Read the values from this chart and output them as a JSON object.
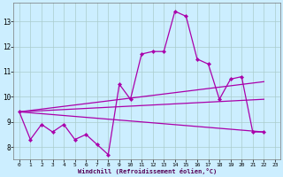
{
  "xlabel": "Windchill (Refroidissement éolien,°C)",
  "background_color": "#cceeff",
  "grid_color": "#aacccc",
  "line_color": "#aa00aa",
  "xlim": [
    -0.5,
    23.5
  ],
  "ylim": [
    7.5,
    13.75
  ],
  "yticks": [
    8,
    9,
    10,
    11,
    12,
    13
  ],
  "xticks": [
    0,
    1,
    2,
    3,
    4,
    5,
    6,
    7,
    8,
    9,
    10,
    11,
    12,
    13,
    14,
    15,
    16,
    17,
    18,
    19,
    20,
    21,
    22,
    23
  ],
  "series": {
    "jagged": {
      "x": [
        0,
        1,
        2,
        3,
        4,
        5,
        6,
        7,
        8,
        9,
        10,
        11,
        12,
        13,
        14,
        15,
        16,
        17,
        18,
        19,
        20,
        21,
        22
      ],
      "y": [
        9.4,
        8.3,
        8.9,
        8.6,
        8.9,
        8.3,
        8.5,
        8.1,
        7.7,
        10.5,
        9.9,
        11.7,
        11.8,
        11.8,
        13.4,
        13.2,
        11.5,
        11.3,
        9.9,
        10.7,
        10.8,
        8.6,
        8.6
      ]
    },
    "trend1": {
      "x": [
        0,
        22
      ],
      "y": [
        9.4,
        10.6
      ]
    },
    "trend2": {
      "x": [
        0,
        22
      ],
      "y": [
        9.4,
        9.9
      ]
    },
    "trend3": {
      "x": [
        0,
        22
      ],
      "y": [
        9.4,
        8.6
      ]
    }
  }
}
